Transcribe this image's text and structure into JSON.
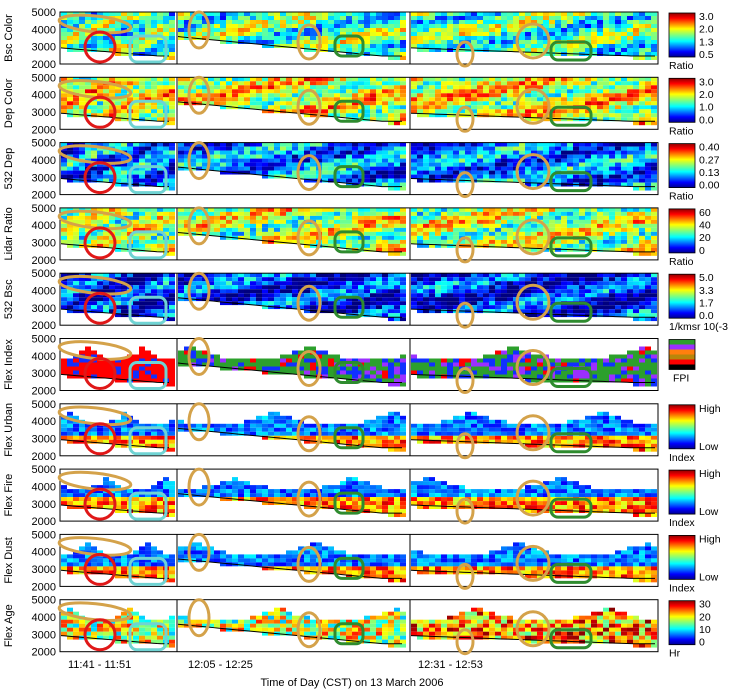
{
  "chart_data": {
    "type": "heatmap",
    "xlabel": "Time of Day (CST) on 13 March 2006",
    "time_segments": [
      "11:41 - 11:51",
      "12:05 - 12:25",
      "12:31 - 12:53"
    ],
    "y_ticks": [
      "5000",
      "4000",
      "3000",
      "2000"
    ],
    "ylim": [
      2000,
      5000
    ],
    "panels": [
      {
        "ylabel": "Bsc Color",
        "colorbar": {
          "labels": [
            "3.0",
            "2.0",
            "1.3",
            "0.5"
          ],
          "unit": "Ratio"
        },
        "map": "jet",
        "vmin": 0.5,
        "vmax": 3.0
      },
      {
        "ylabel": "Dep Color",
        "colorbar": {
          "labels": [
            "3.0",
            "2.0",
            "1.0",
            "0.0"
          ],
          "unit": "Ratio"
        },
        "map": "jet",
        "vmin": 0.0,
        "vmax": 3.0
      },
      {
        "ylabel": "532 Dep",
        "colorbar": {
          "labels": [
            "0.40",
            "0.27",
            "0.13",
            "0.00"
          ],
          "unit": "Ratio"
        },
        "map": "jet",
        "vmin": 0.0,
        "vmax": 0.4
      },
      {
        "ylabel": "Lidar Ratio",
        "colorbar": {
          "labels": [
            "60",
            "40",
            "20",
            "0"
          ],
          "unit": "Ratio"
        },
        "map": "jet",
        "vmin": 0,
        "vmax": 60
      },
      {
        "ylabel": "532 Bsc",
        "colorbar": {
          "labels": [
            "5.0",
            "3.3",
            "1.7",
            "0.0"
          ],
          "unit": "1/kmsr 10(-3"
        },
        "map": "jet",
        "vmin": 0.0,
        "vmax": 5.0
      },
      {
        "ylabel": "Flex Index",
        "colorbar": {
          "labels": [],
          "unit": "FPI",
          "swatches": [
            "#2ca02c",
            "#9b30ff",
            "#ff7f0e",
            "#b8860b",
            "#ff0000",
            "#000000"
          ]
        },
        "map": "categorical"
      },
      {
        "ylabel": "Flex Urban",
        "colorbar": {
          "labels": [
            "High",
            "Low"
          ],
          "unit": "Index"
        },
        "map": "jet"
      },
      {
        "ylabel": "Flex Fire",
        "colorbar": {
          "labels": [
            "High",
            "Low"
          ],
          "unit": "Index"
        },
        "map": "jet"
      },
      {
        "ylabel": "Flex Dust",
        "colorbar": {
          "labels": [
            "High",
            "Low"
          ],
          "unit": "Index"
        },
        "map": "jet"
      },
      {
        "ylabel": "Flex Age",
        "colorbar": {
          "labels": [
            "30",
            "20",
            "10",
            "0"
          ],
          "unit": "Hr"
        },
        "map": "jet",
        "vmin": 0,
        "vmax": 30
      }
    ],
    "annotations": {
      "colors": {
        "ellipse_gold": "#d4a24a",
        "circle_red": "#e01818",
        "box_cyan": "#6fd3d3",
        "box_green": "#2e8b2e"
      }
    }
  }
}
